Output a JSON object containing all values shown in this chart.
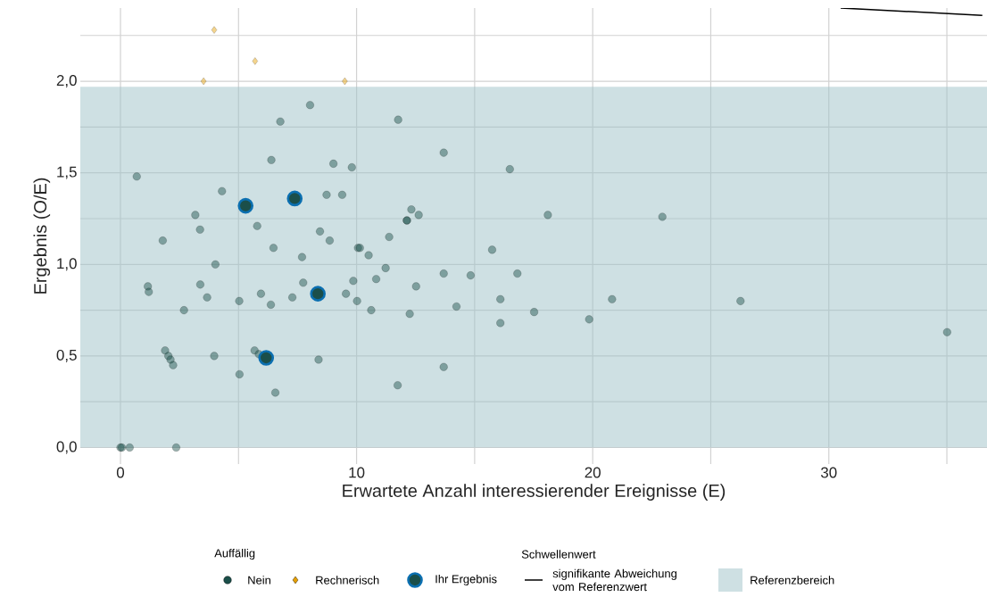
{
  "chart_data": {
    "type": "scatter",
    "xlabel": "Erwartete Anzahl interessierender Ereignisse (E)",
    "ylabel": "Ergebnis (O/E)",
    "legend_title": "Auffällig",
    "annotations": [
      "Schwellenwert"
    ],
    "xlim": [
      -1.7,
      36.7
    ],
    "ylim": [
      -0.09,
      2.4
    ],
    "xticks": [
      0,
      {
        "value": 5,
        "label": null
      },
      10,
      {
        "value": 15,
        "label": null
      },
      20,
      {
        "value": 25,
        "label": null
      },
      30,
      {
        "value": 35,
        "label": null
      }
    ],
    "yticks": [
      {
        "value": 0,
        "label": "0,0"
      },
      {
        "value": 0.25,
        "label": null
      },
      {
        "value": 0.5,
        "label": "0,5"
      },
      {
        "value": 0.75,
        "label": null
      },
      {
        "value": 1,
        "label": "1,0"
      },
      {
        "value": 1.25,
        "label": null
      },
      {
        "value": 1.5,
        "label": "1,5"
      },
      {
        "value": 1.75,
        "label": null
      },
      {
        "value": 2,
        "label": "2,0"
      },
      {
        "value": 2.25,
        "label": null
      }
    ],
    "grid": true,
    "legend": "bottom",
    "bands": [
      {
        "axis": "y",
        "from": 0,
        "to": 1.97,
        "label": "Referenzbereich",
        "color": "#9dc2c8"
      }
    ],
    "series": [
      {
        "name": "Nein",
        "color": "#1b4f4a",
        "marker": "circle",
        "x": [
          0.69,
          8.03,
          6.77,
          11.76,
          6.39,
          9.02,
          9.8,
          4.3,
          8.73,
          9.39,
          12.32,
          12.63,
          12.13,
          12.13,
          3.17,
          3.37,
          5.79,
          8.45,
          8.86,
          11.38,
          1.79,
          6.48,
          10.06,
          10.14,
          7.69,
          10.51,
          11.23,
          4.02,
          1.16,
          1.2,
          3.38,
          3.67,
          5.03,
          5.95,
          6.37,
          7.28,
          7.74,
          9.55,
          9.86,
          10.02,
          10.83,
          10.62,
          12.25,
          12.52,
          2.69,
          1.89,
          2.03,
          2.12,
          2.23,
          3.97,
          5.68,
          5.86,
          8.39,
          5.04,
          6.56,
          11.74,
          0,
          0.06,
          0.39,
          2.36,
          13.69,
          16.49,
          18.1,
          22.95,
          15.74,
          13.69,
          14.83,
          16.81,
          14.23,
          16.09,
          17.52,
          16.09,
          19.85,
          20.82,
          13.69,
          26.26,
          35.01
        ],
        "values": [
          1.48,
          1.87,
          1.78,
          1.79,
          1.57,
          1.55,
          1.53,
          1.4,
          1.38,
          1.38,
          1.3,
          1.27,
          1.24,
          1.24,
          1.27,
          1.19,
          1.21,
          1.18,
          1.13,
          1.15,
          1.13,
          1.09,
          1.09,
          1.09,
          1.04,
          1.05,
          0.98,
          1.0,
          0.88,
          0.85,
          0.89,
          0.82,
          0.8,
          0.84,
          0.78,
          0.82,
          0.9,
          0.84,
          0.91,
          0.8,
          0.92,
          0.75,
          0.73,
          0.88,
          0.75,
          0.53,
          0.5,
          0.48,
          0.45,
          0.5,
          0.53,
          0.51,
          0.48,
          0.4,
          0.3,
          0.34,
          0,
          0,
          0,
          0,
          1.61,
          1.52,
          1.27,
          1.26,
          1.08,
          0.95,
          0.94,
          0.95,
          0.77,
          0.81,
          0.74,
          0.68,
          0.7,
          0.81,
          0.44,
          0.8,
          0.63
        ]
      },
      {
        "name": "Rechnerisch",
        "color": "#e69f00",
        "marker": "diamond",
        "x": [
          3.97,
          5.7,
          3.52,
          9.5
        ],
        "values": [
          2.28,
          2.11,
          2.0,
          2.0
        ]
      },
      {
        "name": "Ihr Ergebnis",
        "color": "#0b6fb0",
        "marker": "circle",
        "x": [
          5.3,
          7.38,
          8.36,
          6.17
        ],
        "values": [
          1.32,
          1.36,
          0.84,
          0.49
        ]
      },
      {
        "name": "signifikante Abweichung vom Referenzwert",
        "type": "line",
        "color": "#000000",
        "marker": "none",
        "line_style": "solid",
        "x": [
          30.5,
          36.5
        ],
        "values": [
          2.4,
          2.36
        ]
      }
    ]
  }
}
